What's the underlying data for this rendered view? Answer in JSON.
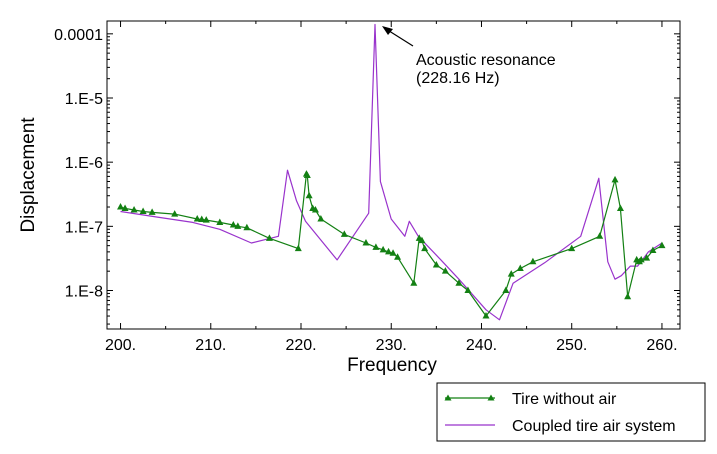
{
  "chart_data": {
    "type": "line",
    "title": "",
    "xlabel": "Frequency",
    "ylabel": "Displacement",
    "xlim": [
      198.5,
      262
    ],
    "ylim_log10": [
      -8.6,
      -3.8
    ],
    "y_scale": "log",
    "grid": false,
    "legend_position": "bottom-right-outside",
    "x_ticks": [
      200,
      210,
      220,
      230,
      240,
      250,
      260
    ],
    "x_tick_labels": [
      "200.",
      "210.",
      "220.",
      "230.",
      "240.",
      "250.",
      "260."
    ],
    "y_ticks": [
      0.0001,
      1e-05,
      1e-06,
      1e-07,
      1e-08
    ],
    "y_tick_labels": [
      "0.0001",
      "1.E-5",
      "1.E-6",
      "1.E-7",
      "1.E-8"
    ],
    "series": [
      {
        "name": "Tire without air",
        "color": "#138013",
        "marker": "triangle",
        "x": [
          200,
          200.5,
          201.5,
          202.5,
          203.5,
          206,
          208.5,
          209,
          209.5,
          211,
          212.5,
          213,
          214,
          216.5,
          219.7,
          220.6,
          220.7,
          220.9,
          221.3,
          221.6,
          222.2,
          224.8,
          227.2,
          228.3,
          229.1,
          229.7,
          230.2,
          230.7,
          232.5,
          233.1,
          233.4,
          233.7,
          235,
          236,
          237.5,
          238.5,
          240.5,
          242.7,
          243.3,
          244.3,
          245.7,
          250,
          253.1,
          254.8,
          255.4,
          256.2,
          257.2,
          257.5,
          257.7,
          258.3,
          259,
          260
        ],
        "y": [
          2e-07,
          1.9e-07,
          1.8e-07,
          1.7e-07,
          1.65e-07,
          1.55e-07,
          1.3e-07,
          1.28e-07,
          1.25e-07,
          1.15e-07,
          1.05e-07,
          1e-07,
          9.5e-08,
          6.5e-08,
          4.5e-08,
          6.5e-07,
          6.2e-07,
          3e-07,
          1.9e-07,
          1.8e-07,
          1.3e-07,
          7.5e-08,
          5.5e-08,
          4.7e-08,
          4.3e-08,
          4e-08,
          3.8e-08,
          3.3e-08,
          1.3e-08,
          6.5e-08,
          6e-08,
          4.5e-08,
          2.5e-08,
          2e-08,
          1.3e-08,
          1e-08,
          4e-09,
          1e-08,
          1.8e-08,
          2.2e-08,
          2.8e-08,
          4.5e-08,
          7e-08,
          5.3e-07,
          1.9e-07,
          8e-09,
          3e-08,
          2.8e-08,
          3e-08,
          3.2e-08,
          4.2e-08,
          5e-08
        ]
      },
      {
        "name": "Coupled tire air system",
        "color": "#9933cc",
        "marker": "none",
        "x": [
          200,
          204,
          208,
          211,
          214.5,
          217.5,
          218.5,
          219.5,
          220.5,
          224,
          227.5,
          228.2,
          228.8,
          230,
          231.5,
          232,
          233,
          235.5,
          237.5,
          240.5,
          242,
          243.5,
          247,
          251,
          253,
          254,
          254.8,
          255.5,
          256.5,
          257.3,
          258.5,
          260
        ],
        "y": [
          1.7e-07,
          1.4e-07,
          1.15e-07,
          9e-08,
          5.5e-08,
          7e-08,
          7.5e-07,
          2.5e-07,
          1.2e-07,
          3e-08,
          1.6e-07,
          0.00014,
          5e-07,
          1.3e-07,
          7e-08,
          1.2e-07,
          7e-08,
          3e-08,
          1.5e-08,
          5e-09,
          3.5e-09,
          1.3e-08,
          2.7e-08,
          7e-08,
          5.6e-07,
          2.8e-08,
          1.5e-08,
          1.7e-08,
          2.4e-08,
          2.4e-08,
          4e-08,
          5.5e-08
        ]
      }
    ],
    "annotations": [
      {
        "line1": "Acoustic resonance",
        "line2": "(228.16 Hz)",
        "x": 228.16,
        "y": 0.00014
      }
    ]
  }
}
